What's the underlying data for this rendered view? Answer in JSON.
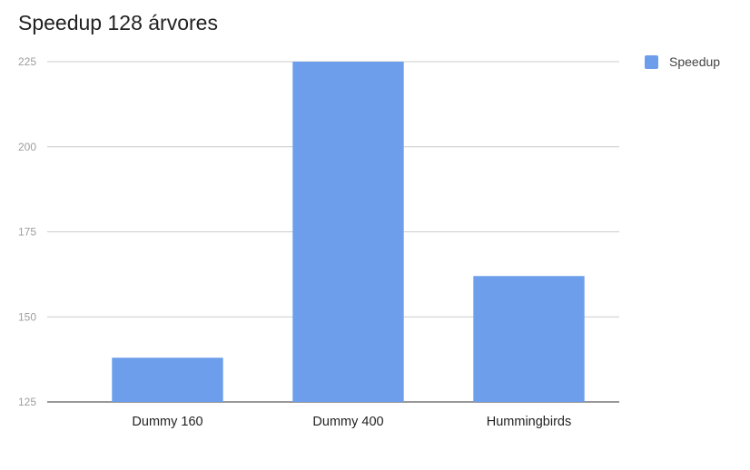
{
  "chart_data": {
    "type": "bar",
    "title": "Speedup 128 árvores",
    "categories": [
      "Dummy 160",
      "Dummy 400",
      "Hummingbirds"
    ],
    "series": [
      {
        "name": "Speedup",
        "values": [
          138,
          225,
          162
        ],
        "color": "#6d9eeb"
      }
    ],
    "ylim": [
      125,
      225
    ],
    "yticks": [
      125,
      150,
      175,
      200,
      225
    ],
    "xlabel": "",
    "ylabel": "",
    "grid": true,
    "legend": "right"
  }
}
